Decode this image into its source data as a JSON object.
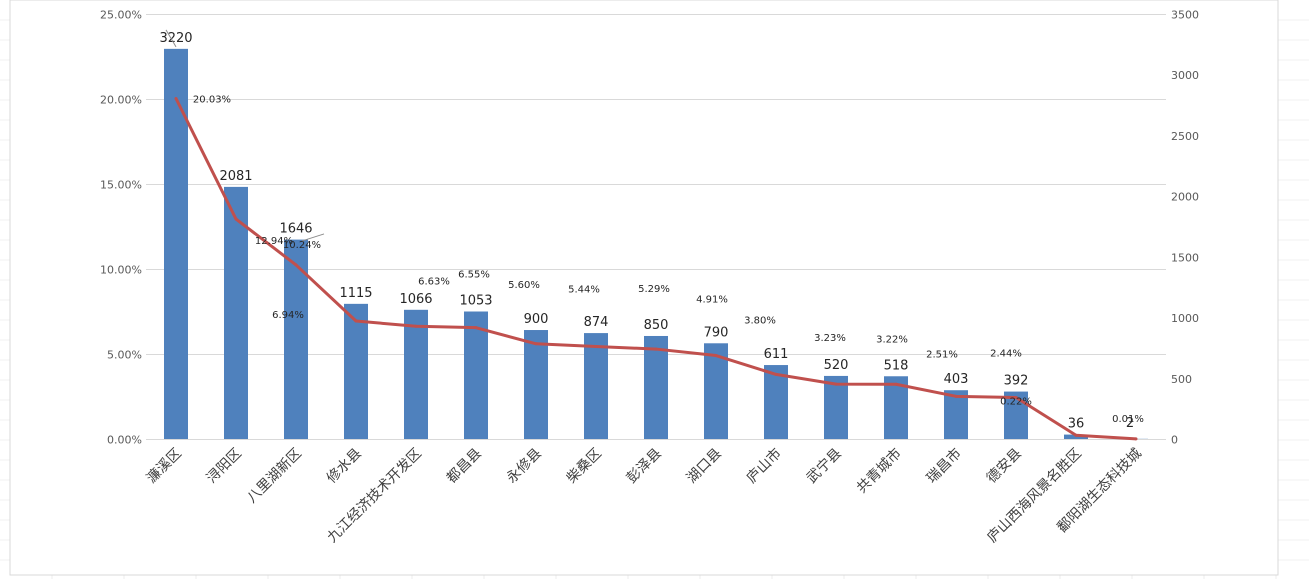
{
  "chart_data": {
    "type": "bar",
    "categories": [
      "濂溪区",
      "浔阳区",
      "八里湖新区",
      "修水县",
      "九江经济技术开发区",
      "都昌县",
      "永修县",
      "柴桑区",
      "彭泽县",
      "湖口县",
      "庐山市",
      "武宁县",
      "共青城市",
      "瑞昌市",
      "德安县",
      "庐山西海风景名胜区",
      "鄱阳湖生态科技城"
    ],
    "series": [
      {
        "axis": "left",
        "values": [
          22.95,
          14.83,
          11.73,
          7.95,
          7.6,
          7.5,
          6.41,
          6.23,
          6.06,
          5.63,
          4.35,
          3.71,
          3.69,
          2.87,
          2.79,
          0.26,
          0.01
        ],
        "color": "#4F81BD"
      },
      {
        "axis": "right",
        "values": [
          3220,
          2081,
          1646,
          1115,
          1066,
          1053,
          900,
          874,
          850,
          790,
          611,
          520,
          518,
          403,
          392,
          36,
          2
        ],
        "value_labels": [
          "3220",
          "2081",
          "1646",
          "1115",
          "1066",
          "1053",
          "900",
          "874",
          "850",
          "790",
          "611",
          "520",
          "518",
          "403",
          "392",
          "36",
          "2"
        ],
        "color": "#4F81BD"
      },
      {
        "axis": "left",
        "type": "line",
        "values": [
          20.03,
          12.94,
          10.24,
          6.94,
          6.63,
          6.55,
          5.6,
          5.44,
          5.29,
          4.91,
          3.8,
          3.23,
          3.22,
          2.51,
          2.44,
          0.22,
          0.01
        ],
        "value_labels": [
          "20.03%",
          "12.94%",
          "10.24%",
          "6.94%",
          "6.63%",
          "6.55%",
          "5.60%",
          "5.44%",
          "5.29%",
          "4.91%",
          "3.80%",
          "3.23%",
          "3.22%",
          "2.51%",
          "2.44%",
          "0.22%",
          "0.01%"
        ],
        "color": "#C0504D"
      }
    ],
    "left_axis": {
      "min": 0,
      "max": 25,
      "ticks": [
        0,
        5,
        10,
        15,
        20,
        25
      ],
      "tick_labels": [
        "0.00%",
        "5.00%",
        "10.00%",
        "15.00%",
        "20.00%",
        "25.00%"
      ]
    },
    "right_axis": {
      "min": 0,
      "max": 3500,
      "ticks": [
        0,
        500,
        1000,
        1500,
        2000,
        2500,
        3000,
        3500
      ],
      "tick_labels": [
        "0",
        "500",
        "1000",
        "1500",
        "2000",
        "2500",
        "3000",
        "3500"
      ]
    },
    "grid": true,
    "legend": "none"
  }
}
